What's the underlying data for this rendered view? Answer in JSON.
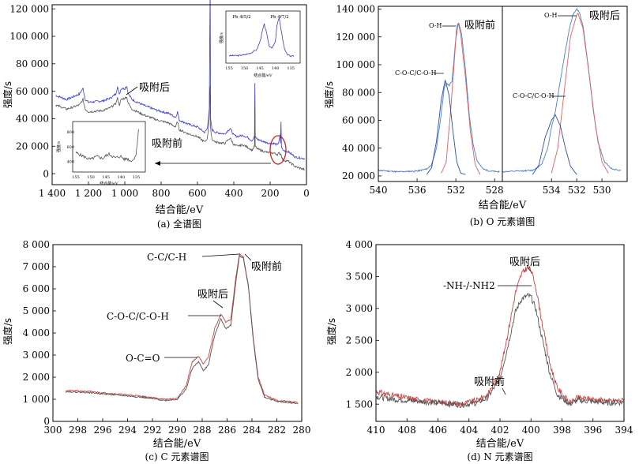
{
  "chart_data": [
    {
      "id": "a",
      "type": "line",
      "caption": "(a) 全谱图",
      "xlabel": "结合能/eV",
      "ylabel": "强度/s",
      "xlim": [
        1400,
        0
      ],
      "ylim": [
        -8000,
        123000
      ],
      "xticks": [
        "1 400",
        "1 200",
        "1 000",
        "800",
        "600",
        "400",
        "200",
        "0"
      ],
      "xtick_values": [
        1400,
        1200,
        1000,
        800,
        600,
        400,
        200,
        0
      ],
      "yticks": [
        "0",
        "20 000",
        "40 000",
        "60 000",
        "80 000",
        "100 000",
        "120 000"
      ],
      "ytick_values": [
        0,
        20000,
        40000,
        60000,
        80000,
        100000,
        120000
      ],
      "annotations": [
        "吸附后",
        "吸附前"
      ],
      "series": [
        {
          "name": "吸附后",
          "color": "#3a3ad0",
          "x": [
            1380,
            1320,
            1250,
            1230,
            1218,
            1200,
            1120,
            1080,
            1050,
            1040,
            1030,
            1020,
            1000,
            990,
            980,
            960,
            900,
            820,
            760,
            720,
            710,
            700,
            650,
            600,
            560,
            545,
            535,
            530,
            528,
            520,
            500,
            450,
            420,
            400,
            380,
            350,
            320,
            300,
            286,
            284,
            282,
            270,
            250,
            230,
            200,
            180,
            160,
            150,
            145,
            143,
            140,
            138,
            130,
            100,
            60,
            10
          ],
          "y": [
            57000,
            54000,
            58000,
            62000,
            54000,
            52000,
            53000,
            55000,
            58000,
            63000,
            58000,
            62000,
            62000,
            64000,
            58000,
            54000,
            50000,
            46000,
            44000,
            41000,
            45000,
            39000,
            36000,
            34000,
            30000,
            33000,
            48000,
            137000,
            40000,
            32000,
            30000,
            29000,
            33000,
            28000,
            27000,
            28000,
            26000,
            24000,
            27000,
            66000,
            27000,
            25000,
            24000,
            23000,
            22000,
            22000,
            21000,
            24000,
            28000,
            22000,
            38000,
            20000,
            17000,
            16000,
            12000,
            11000
          ]
        },
        {
          "name": "吸附前",
          "color": "#555555",
          "x": [
            1380,
            1320,
            1250,
            1230,
            1218,
            1200,
            1120,
            1080,
            1050,
            1040,
            1030,
            1020,
            1000,
            990,
            980,
            960,
            900,
            820,
            760,
            720,
            710,
            700,
            650,
            600,
            560,
            545,
            535,
            530,
            528,
            520,
            500,
            450,
            420,
            400,
            380,
            350,
            320,
            300,
            286,
            284,
            282,
            270,
            250,
            230,
            200,
            180,
            160,
            150,
            140,
            130,
            100,
            60,
            10
          ],
          "y": [
            50000,
            47000,
            50000,
            54000,
            47000,
            45000,
            46000,
            48000,
            51000,
            55000,
            50000,
            54000,
            55000,
            56000,
            51000,
            47000,
            43000,
            39000,
            37000,
            34000,
            38000,
            32000,
            29000,
            27000,
            23000,
            26000,
            40000,
            63000,
            33000,
            25000,
            23000,
            22000,
            26000,
            21000,
            20000,
            21000,
            19000,
            17000,
            20000,
            50000,
            20000,
            18000,
            17000,
            16000,
            15000,
            15000,
            14000,
            15000,
            14000,
            10000,
            9000,
            5000,
            3000
          ]
        }
      ]
    },
    {
      "id": "a-inset-top",
      "type": "line",
      "ylabel": "强度/s",
      "xlabel": "结合能/eV",
      "xlim": [
        155,
        133
      ],
      "xticks": [
        "155",
        "150",
        "145",
        "140",
        "135"
      ],
      "xtick_values": [
        155,
        150,
        145,
        140,
        135
      ],
      "peak_labels": [
        "Pb 4f5/2",
        "Pb 4f7/2"
      ],
      "series": [
        {
          "name": "Pb 4f",
          "color": "#3a3ad0",
          "x": [
            155,
            152,
            150,
            148,
            146,
            145,
            144,
            143.6,
            143,
            142,
            141,
            140,
            139.5,
            138.8,
            138,
            137,
            136,
            135,
            134
          ],
          "y": [
            0.1,
            0.1,
            0.12,
            0.16,
            0.24,
            0.42,
            0.72,
            0.82,
            0.66,
            0.32,
            0.28,
            0.42,
            0.78,
            0.98,
            0.62,
            0.24,
            0.12,
            0.08,
            0.1
          ]
        }
      ]
    },
    {
      "id": "a-inset-bottom",
      "type": "line",
      "ylabel": "强度/s",
      "xlabel": "结合能/eV",
      "xlim": [
        155,
        133
      ],
      "yticks": [
        "800",
        "600",
        "400"
      ],
      "ytick_values": [
        800,
        600,
        400
      ],
      "xticks": [
        "155",
        "150",
        "145",
        "140",
        "135"
      ],
      "xtick_values": [
        155,
        150,
        145,
        140,
        135
      ],
      "series": [
        {
          "name": "吸附前",
          "color": "#555555",
          "x": [
            155,
            153,
            151,
            150,
            148,
            146,
            145,
            144,
            142,
            140,
            139,
            138,
            137,
            136,
            135,
            134.2
          ],
          "y": [
            520,
            480,
            440,
            430,
            470,
            440,
            480,
            500,
            450,
            470,
            430,
            440,
            410,
            420,
            500,
            840
          ]
        }
      ]
    },
    {
      "id": "b",
      "type": "line",
      "caption": "(b) O 元素谱图",
      "xlabel": "结合能/eV",
      "ylabel": "强度/s",
      "yticks": [
        "20 000",
        "40 000",
        "60 000",
        "80 000",
        "100 000",
        "120 000",
        "140 000"
      ],
      "ytick_values": [
        20000,
        40000,
        60000,
        80000,
        100000,
        120000,
        140000
      ],
      "ylim": [
        16000,
        142000
      ],
      "panels": [
        {
          "name": "吸附前",
          "xlim": [
            540,
            527.2
          ],
          "xticks": [
            "540",
            "536",
            "532",
            "528"
          ],
          "xtick_values": [
            540,
            536,
            532,
            528
          ],
          "labels": [
            "O-H",
            "C-O-C/C-O-H"
          ],
          "series": [
            {
              "name": "envelope",
              "color": "#4a7fd0",
              "x": [
                540,
                538,
                536,
                535,
                534.5,
                534,
                533.6,
                533.2,
                533,
                532.7,
                532.4,
                532.2,
                531.9,
                531.7,
                531.4,
                531,
                530.6,
                530.2,
                529.8,
                529.2,
                528.5,
                527.5
              ],
              "y": [
                24000,
                23000,
                23500,
                25000,
                28000,
                40000,
                60000,
                83000,
                87000,
                85000,
                88000,
                103000,
                128000,
                130000,
                122000,
                96000,
                63000,
                42000,
                31000,
                25000,
                23500,
                23000
              ]
            },
            {
              "name": "O-H",
              "color": "#e06060",
              "x": [
                533.5,
                533,
                532.5,
                532,
                531.75,
                531.5,
                531,
                530.5,
                530,
                529.5
              ],
              "y": [
                22000,
                30000,
                70000,
                118000,
                130000,
                122000,
                90000,
                52000,
                28000,
                21000
              ]
            },
            {
              "name": "C-O-C/C-O-H",
              "color": "#2a4fa8",
              "x": [
                535,
                534.5,
                534,
                533.5,
                533.1,
                532.7,
                532.3,
                531.9,
                531.5,
                531
              ],
              "y": [
                21000,
                26000,
                45000,
                75000,
                89000,
                78000,
                52000,
                30000,
                22000,
                21000
              ]
            }
          ]
        },
        {
          "name": "吸附后",
          "xlim": [
            537.9,
            528
          ],
          "xticks": [
            "534",
            "532",
            "530"
          ],
          "xtick_values": [
            534,
            532,
            530
          ],
          "labels": [
            "O-H",
            "C-O-C/C-O-H"
          ],
          "series": [
            {
              "name": "envelope",
              "color": "#4a7fd0",
              "x": [
                537.9,
                536.5,
                535.5,
                534.8,
                534.3,
                534,
                533.7,
                533.4,
                533,
                532.6,
                532.3,
                532,
                531.8,
                531.5,
                531.1,
                530.7,
                530.3,
                529.8,
                529.2,
                528.5
              ],
              "y": [
                23000,
                23500,
                24000,
                28000,
                40000,
                55000,
                66000,
                83000,
                105000,
                125000,
                136000,
                140000,
                138000,
                128000,
                100000,
                68000,
                44000,
                30000,
                25000,
                24000
              ]
            },
            {
              "name": "O-H",
              "color": "#e06060",
              "x": [
                534,
                533.5,
                533,
                532.5,
                532,
                531.9,
                531.5,
                531,
                530.5,
                530,
                529.5
              ],
              "y": [
                22000,
                40000,
                80000,
                120000,
                136000,
                137000,
                126000,
                92000,
                55000,
                30000,
                22000
              ]
            },
            {
              "name": "C-O-C/C-O-H",
              "color": "#2a4fa8",
              "x": [
                535.5,
                535,
                534.5,
                534,
                533.7,
                533.3,
                532.9,
                532.5,
                532
              ],
              "y": [
                21000,
                28000,
                48000,
                60000,
                64000,
                56000,
                40000,
                27000,
                21000
              ]
            }
          ]
        }
      ],
      "annotations": [
        "吸附前",
        "吸附后"
      ]
    },
    {
      "id": "c",
      "type": "line",
      "caption": "(c) C 元素谱图",
      "xlabel": "结合能/eV",
      "ylabel": "强度/s",
      "xlim": [
        300,
        280
      ],
      "ylim": [
        0,
        8000
      ],
      "xticks": [
        "300",
        "298",
        "296",
        "294",
        "292",
        "290",
        "288",
        "286",
        "284",
        "282",
        "280"
      ],
      "xtick_values": [
        300,
        298,
        296,
        294,
        292,
        290,
        288,
        286,
        284,
        282,
        280
      ],
      "yticks": [
        "0",
        "1 000",
        "2 000",
        "3 000",
        "4 000",
        "5 000",
        "6 000",
        "7 000",
        "8 000"
      ],
      "ytick_values": [
        0,
        1000,
        2000,
        3000,
        4000,
        5000,
        6000,
        7000,
        8000
      ],
      "labels": [
        "C-C/C-H",
        "C-O-C/C-O-H",
        "O-C=O"
      ],
      "annotations": [
        "吸附前",
        "吸附后"
      ],
      "series": [
        {
          "name": "吸附后",
          "color": "#d04040",
          "x": [
            299,
            297,
            295,
            293,
            291,
            290,
            289.3,
            288.8,
            288.3,
            287.9,
            287.5,
            287,
            286.5,
            286.1,
            285.7,
            285.3,
            285,
            284.7,
            284.3,
            283.9,
            283.5,
            283,
            282,
            281,
            280.3
          ],
          "y": [
            1400,
            1350,
            1250,
            1150,
            1000,
            1050,
            1600,
            2700,
            2950,
            2600,
            2900,
            4200,
            4850,
            4500,
            4600,
            6500,
            7600,
            7450,
            6200,
            3800,
            2000,
            1200,
            950,
            900,
            850
          ]
        },
        {
          "name": "吸附前",
          "color": "#555555",
          "x": [
            299,
            297,
            295,
            293,
            291,
            290,
            289.3,
            288.8,
            288.3,
            287.9,
            287.5,
            287,
            286.5,
            286.1,
            285.7,
            285.3,
            285,
            284.7,
            284.3,
            283.9,
            283.5,
            283,
            282,
            281,
            280.3
          ],
          "y": [
            1350,
            1300,
            1200,
            1100,
            950,
            1000,
            1450,
            2400,
            2700,
            2300,
            2550,
            3900,
            4650,
            4200,
            4350,
            6300,
            7500,
            7400,
            6150,
            3700,
            1900,
            1100,
            900,
            850,
            800
          ]
        }
      ]
    },
    {
      "id": "d",
      "type": "line",
      "caption": "(d) N 元素谱图",
      "xlabel": "结合能/eV",
      "ylabel": "强度/s",
      "xlim": [
        410,
        394
      ],
      "ylim": [
        1230,
        4000
      ],
      "xticks": [
        "410",
        "408",
        "406",
        "404",
        "402",
        "400",
        "398",
        "396",
        "394"
      ],
      "xtick_values": [
        410,
        408,
        406,
        404,
        402,
        400,
        398,
        396,
        394
      ],
      "yticks": [
        "1 500",
        "2 000",
        "2 500",
        "3 000",
        "3 500",
        "4 000"
      ],
      "ytick_values": [
        1500,
        2000,
        2500,
        3000,
        3500,
        4000
      ],
      "labels": [
        "-NH-/-NH2"
      ],
      "annotations": [
        "吸附后",
        "吸附前"
      ],
      "series": [
        {
          "name": "吸附后",
          "color": "#d04040",
          "x": [
            410,
            409,
            408,
            407,
            406,
            405,
            404.5,
            403.5,
            402.8,
            402,
            401.5,
            401,
            400.6,
            400.2,
            400,
            399.7,
            399.3,
            398.8,
            398.3,
            397.5,
            397,
            396,
            395,
            394
          ],
          "y": [
            1700,
            1640,
            1600,
            1560,
            1530,
            1520,
            1500,
            1560,
            1650,
            2000,
            2600,
            3250,
            3550,
            3650,
            3600,
            3350,
            2800,
            2150,
            1750,
            1520,
            1600,
            1580,
            1550,
            1560
          ]
        },
        {
          "name": "吸附前",
          "color": "#555555",
          "x": [
            410,
            409,
            408,
            407,
            406,
            405,
            404.5,
            403.5,
            402.8,
            402,
            401.5,
            401,
            400.6,
            400.2,
            400,
            399.7,
            399.3,
            398.8,
            398.3,
            397.5,
            397,
            396,
            395,
            394
          ],
          "y": [
            1620,
            1580,
            1560,
            1540,
            1520,
            1500,
            1490,
            1520,
            1600,
            1900,
            2400,
            2950,
            3150,
            3200,
            3180,
            3000,
            2550,
            2000,
            1650,
            1500,
            1560,
            1540,
            1520,
            1530
          ]
        }
      ]
    }
  ]
}
